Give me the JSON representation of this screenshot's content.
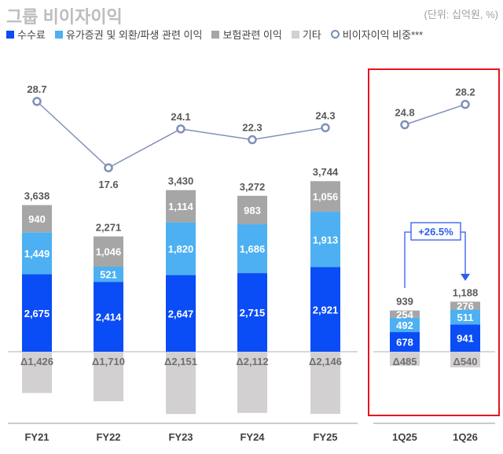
{
  "title": "그룹 비이자이익",
  "unit": "(단위: 십억원, %)",
  "colors": {
    "fee": "#0a4cf5",
    "securities": "#4cb0f2",
    "insurance": "#a6a6a6",
    "other": "#d2d0d0",
    "ratio": "#8090b8",
    "highlight": "#e8141c",
    "growth": "#2f5cf0"
  },
  "chart_data": {
    "type": "bar",
    "categories": [
      "FY21",
      "FY22",
      "FY23",
      "FY24",
      "FY25",
      "1Q25",
      "1Q26"
    ],
    "series": [
      {
        "name": "수수료",
        "values": [
          2675,
          2414,
          2647,
          2715,
          2921,
          678,
          941
        ]
      },
      {
        "name": "유가증권 및 외환/파생 관련 이익",
        "values": [
          1449,
          521,
          1820,
          1686,
          1913,
          492,
          511
        ]
      },
      {
        "name": "보험관련 이익",
        "values": [
          940,
          1046,
          1114,
          983,
          1056,
          254,
          276
        ]
      },
      {
        "name": "기타",
        "values": [
          -1426,
          -1710,
          -2151,
          -2112,
          -2146,
          -485,
          -540
        ]
      }
    ],
    "other_labels": [
      "Δ1,426",
      "Δ1,710",
      "Δ2,151",
      "Δ2,112",
      "Δ2,146",
      "Δ485",
      "Δ540"
    ],
    "totals": [
      3638,
      2271,
      3430,
      3272,
      3744,
      939,
      1188
    ],
    "total_labels": [
      "3,638",
      "2,271",
      "3,430",
      "3,272",
      "3,744",
      "939",
      "1,188"
    ],
    "line": {
      "name": "비이자이익 비중***",
      "values": [
        28.7,
        17.6,
        24.1,
        22.3,
        24.3,
        24.8,
        28.2
      ]
    },
    "annotation": "+26.5%",
    "legend_position": "top"
  }
}
